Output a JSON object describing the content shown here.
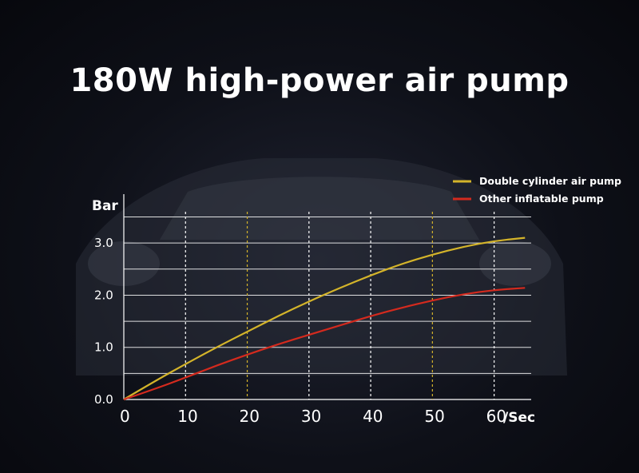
{
  "title": "180W high-power air pump",
  "chart_data": {
    "type": "line",
    "ylabel": "Bar",
    "xunit": "/Sec",
    "xlim": [
      0,
      66
    ],
    "ylim": [
      0,
      3.6
    ],
    "x_ticks": [
      "0",
      "10",
      "20",
      "30",
      "40",
      "50",
      "60"
    ],
    "y_ticks": [
      "0.0",
      "1.0",
      "2.0",
      "3.0"
    ],
    "series": [
      {
        "name": "Double cylinder air pump",
        "color": "#d4b42a",
        "x": [
          0,
          5,
          10,
          15,
          20,
          25,
          30,
          35,
          40,
          45,
          50,
          55,
          60,
          65
        ],
        "values": [
          0,
          0.35,
          0.68,
          1.0,
          1.3,
          1.6,
          1.88,
          2.14,
          2.38,
          2.6,
          2.78,
          2.93,
          3.04,
          3.1
        ]
      },
      {
        "name": "Other inflatable pump",
        "color": "#d42a1e",
        "x": [
          0,
          5,
          10,
          15,
          20,
          25,
          30,
          35,
          40,
          45,
          50,
          55,
          60,
          65
        ],
        "values": [
          0,
          0.2,
          0.42,
          0.65,
          0.86,
          1.06,
          1.24,
          1.42,
          1.6,
          1.76,
          1.9,
          2.02,
          2.1,
          2.14
        ]
      }
    ],
    "legend_position": "top-right",
    "grid": true
  }
}
